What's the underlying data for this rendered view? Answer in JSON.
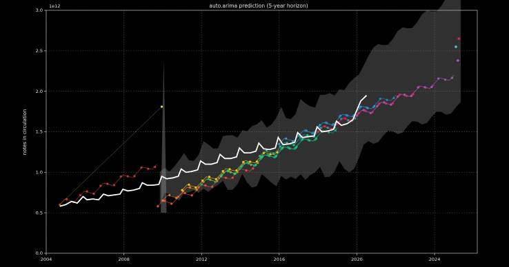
{
  "chart_data": {
    "type": "line",
    "title": "auto.arima prediction (5-year horizon)",
    "xlabel": "",
    "ylabel": "notes in circulation",
    "y_exponent_label": "1e12",
    "xlim": [
      2004,
      2026.2
    ],
    "ylim": [
      0,
      3.0
    ],
    "x_ticks": [
      2004,
      2008,
      2012,
      2016,
      2020,
      2024
    ],
    "y_ticks": [
      0.0,
      0.5,
      1.0,
      1.5,
      2.0,
      2.5,
      3.0
    ],
    "y_tick_labels": [
      "0.0",
      "0.5",
      "1.0",
      "1.5",
      "2.0",
      "2.5",
      "3.0"
    ],
    "grid": true,
    "grid_style": "dotted",
    "series": [
      {
        "role": "actual",
        "color": "#ffffff",
        "x": [
          2004.7,
          2005.0,
          2005.3,
          2005.6,
          2005.9,
          2006.1,
          2006.4,
          2006.7,
          2006.95,
          2007.2,
          2007.5,
          2007.8,
          2007.95,
          2008.2,
          2008.5,
          2008.8,
          2008.95,
          2009.2,
          2009.5,
          2009.8,
          2009.95,
          2010.2,
          2010.5,
          2010.8,
          2010.95,
          2011.2,
          2011.5,
          2011.8,
          2011.95,
          2012.2,
          2012.5,
          2012.8,
          2012.95,
          2013.2,
          2013.5,
          2013.8,
          2013.95,
          2014.2,
          2014.5,
          2014.8,
          2014.95,
          2015.2,
          2015.5,
          2015.8,
          2015.95,
          2016.2,
          2016.5,
          2016.8,
          2016.95,
          2017.2,
          2017.5,
          2017.8,
          2017.95,
          2018.2,
          2018.5,
          2018.8,
          2018.95,
          2019.2,
          2019.5,
          2019.8,
          2019.95,
          2020.2,
          2020.5
        ],
        "y": [
          0.58,
          0.6,
          0.64,
          0.62,
          0.7,
          0.66,
          0.67,
          0.66,
          0.73,
          0.71,
          0.72,
          0.73,
          0.79,
          0.77,
          0.78,
          0.8,
          0.87,
          0.84,
          0.84,
          0.85,
          0.95,
          0.92,
          0.93,
          0.95,
          1.04,
          1.0,
          1.01,
          1.03,
          1.14,
          1.1,
          1.1,
          1.12,
          1.22,
          1.17,
          1.17,
          1.19,
          1.3,
          1.24,
          1.24,
          1.26,
          1.36,
          1.29,
          1.28,
          1.3,
          1.43,
          1.34,
          1.35,
          1.37,
          1.49,
          1.43,
          1.44,
          1.45,
          1.56,
          1.5,
          1.51,
          1.53,
          1.63,
          1.58,
          1.6,
          1.65,
          1.74,
          1.88,
          1.95
        ]
      }
    ],
    "forecast_origins": [
      {
        "start": 2004.7,
        "color": "#c0392b",
        "level": 0.6
      },
      {
        "start": 2009.75,
        "color": "#e74c3c",
        "level": 0.58
      },
      {
        "start": 2010.0,
        "color": "#e67e22",
        "level": 0.65
      },
      {
        "start": 2011.0,
        "color": "#f1c40f",
        "level": 0.78
      },
      {
        "start": 2012.0,
        "color": "#27ae60",
        "level": 0.85
      },
      {
        "start": 2013.0,
        "color": "#2ecc71",
        "level": 0.95
      },
      {
        "start": 2014.0,
        "color": "#16a085",
        "level": 1.05
      },
      {
        "start": 2015.0,
        "color": "#1abc9c",
        "level": 1.2
      },
      {
        "start": 2016.0,
        "color": "#3498db",
        "level": 1.35
      },
      {
        "start": 2017.0,
        "color": "#2980b9",
        "level": 1.45
      },
      {
        "start": 2018.0,
        "color": "#e91e63",
        "level": 1.5
      },
      {
        "start": 2019.0,
        "color": "#c2185b",
        "level": 1.6
      },
      {
        "start": 2020.0,
        "color": "#9b59b6",
        "level": 1.7
      }
    ]
  }
}
